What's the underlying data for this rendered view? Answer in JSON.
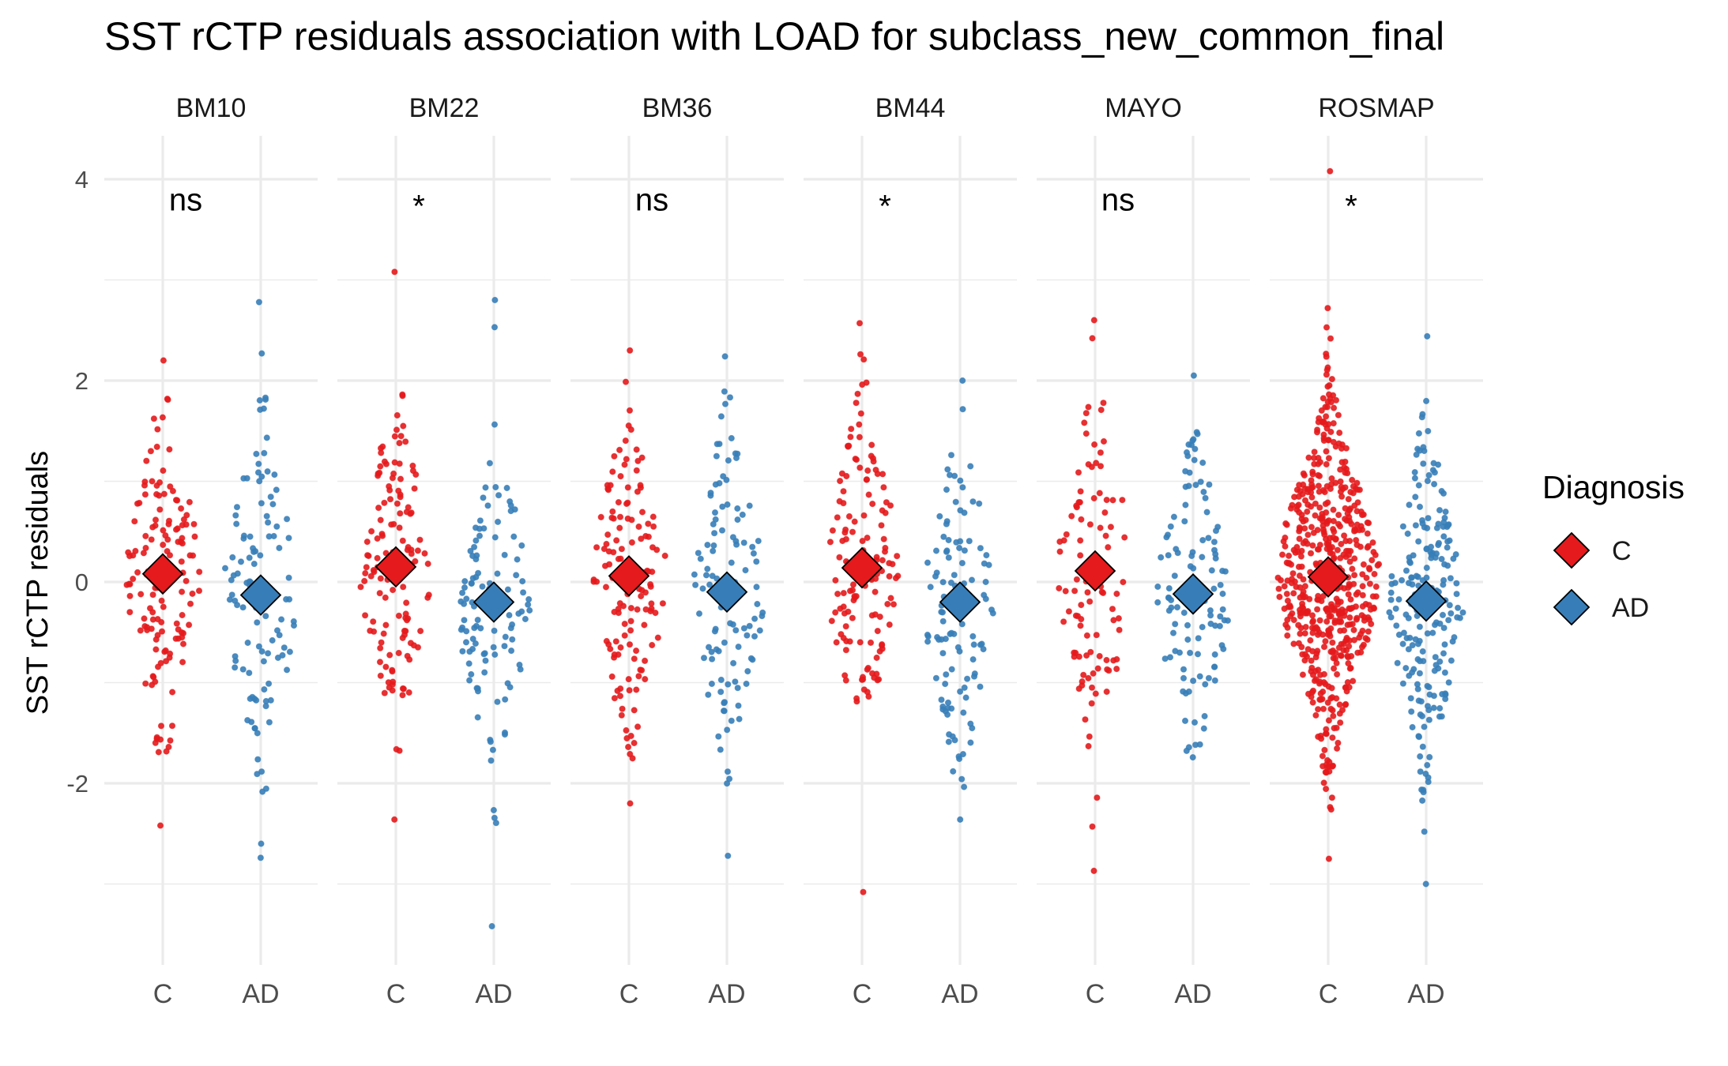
{
  "chart_data": {
    "type": "scatter",
    "title": "SST rCTP residuals association with LOAD for subclass_new_common_final",
    "xlabel": "",
    "ylabel": "SST rCTP residuals",
    "ylim": [
      -3.8,
      4.5
    ],
    "y_ticks": [
      -2,
      0,
      2,
      4
    ],
    "y_tick_labels": [
      "-2",
      "0",
      "2",
      "4"
    ],
    "categories": [
      "C",
      "AD"
    ],
    "grid": true,
    "legend": {
      "title": "Diagnosis",
      "position": "right",
      "entries": [
        {
          "label": "C",
          "color": "#e41a1c"
        },
        {
          "label": "AD",
          "color": "#377eb8"
        }
      ]
    },
    "colors": {
      "C": "#e41a1c",
      "AD": "#377eb8"
    },
    "panels": [
      {
        "name": "BM10",
        "significance": "ns",
        "mean": {
          "C": 0.08,
          "AD": -0.13
        },
        "outliers": {
          "C": [
            2.2,
            -2.42
          ],
          "AD": [
            2.78,
            2.27,
            -2.6,
            -2.74
          ]
        },
        "n": {
          "C": 140,
          "AD": 105
        },
        "sd": {
          "C": 0.85,
          "AD": 0.9
        },
        "range": {
          "C": [
            -1.72,
            1.83
          ],
          "AD": [
            -2.1,
            1.86
          ]
        }
      },
      {
        "name": "BM22",
        "significance": "*",
        "mean": {
          "C": 0.15,
          "AD": -0.2
        },
        "outliers": {
          "C": [
            3.08,
            -2.36
          ],
          "AD": [
            2.8,
            2.53,
            -3.42
          ]
        },
        "n": {
          "C": 135,
          "AD": 110
        },
        "sd": {
          "C": 0.85,
          "AD": 0.85
        },
        "range": {
          "C": [
            -1.74,
            1.98
          ],
          "AD": [
            -2.45,
            2.12
          ]
        }
      },
      {
        "name": "BM36",
        "significance": "ns",
        "mean": {
          "C": 0.06,
          "AD": -0.1
        },
        "outliers": {
          "C": [
            2.3,
            -2.2
          ],
          "AD": [
            2.24,
            -2.72
          ]
        },
        "n": {
          "C": 135,
          "AD": 105
        },
        "sd": {
          "C": 0.85,
          "AD": 0.85
        },
        "range": {
          "C": [
            -1.8,
            2.0
          ],
          "AD": [
            -2.15,
            1.95
          ]
        }
      },
      {
        "name": "BM44",
        "significance": "*",
        "mean": {
          "C": 0.14,
          "AD": -0.2
        },
        "outliers": {
          "C": [
            2.57,
            -3.08
          ],
          "AD": [
            2.0,
            -2.36
          ]
        },
        "n": {
          "C": 140,
          "AD": 110
        },
        "sd": {
          "C": 0.85,
          "AD": 0.85
        },
        "range": {
          "C": [
            -2.08,
            2.32
          ],
          "AD": [
            -2.06,
            1.85
          ]
        }
      },
      {
        "name": "MAYO",
        "significance": "ns",
        "mean": {
          "C": 0.11,
          "AD": -0.12
        },
        "outliers": {
          "C": [
            2.6,
            2.42,
            -2.43,
            -2.87
          ],
          "AD": [
            2.05
          ]
        },
        "n": {
          "C": 100,
          "AD": 115
        },
        "sd": {
          "C": 0.9,
          "AD": 0.85
        },
        "range": {
          "C": [
            -2.23,
            1.87
          ],
          "AD": [
            -1.78,
            1.55
          ]
        }
      },
      {
        "name": "ROSMAP",
        "significance": "*",
        "mean": {
          "C": 0.05,
          "AD": -0.19
        },
        "outliers": {
          "C": [
            4.08,
            2.72,
            -2.75
          ],
          "AD": [
            2.44,
            -2.48,
            -3.0
          ]
        },
        "n": {
          "C": 560,
          "AD": 200
        },
        "sd": {
          "C": 0.85,
          "AD": 0.85
        },
        "range": {
          "C": [
            -2.45,
            2.6
          ],
          "AD": [
            -2.25,
            2.35
          ]
        }
      }
    ]
  }
}
